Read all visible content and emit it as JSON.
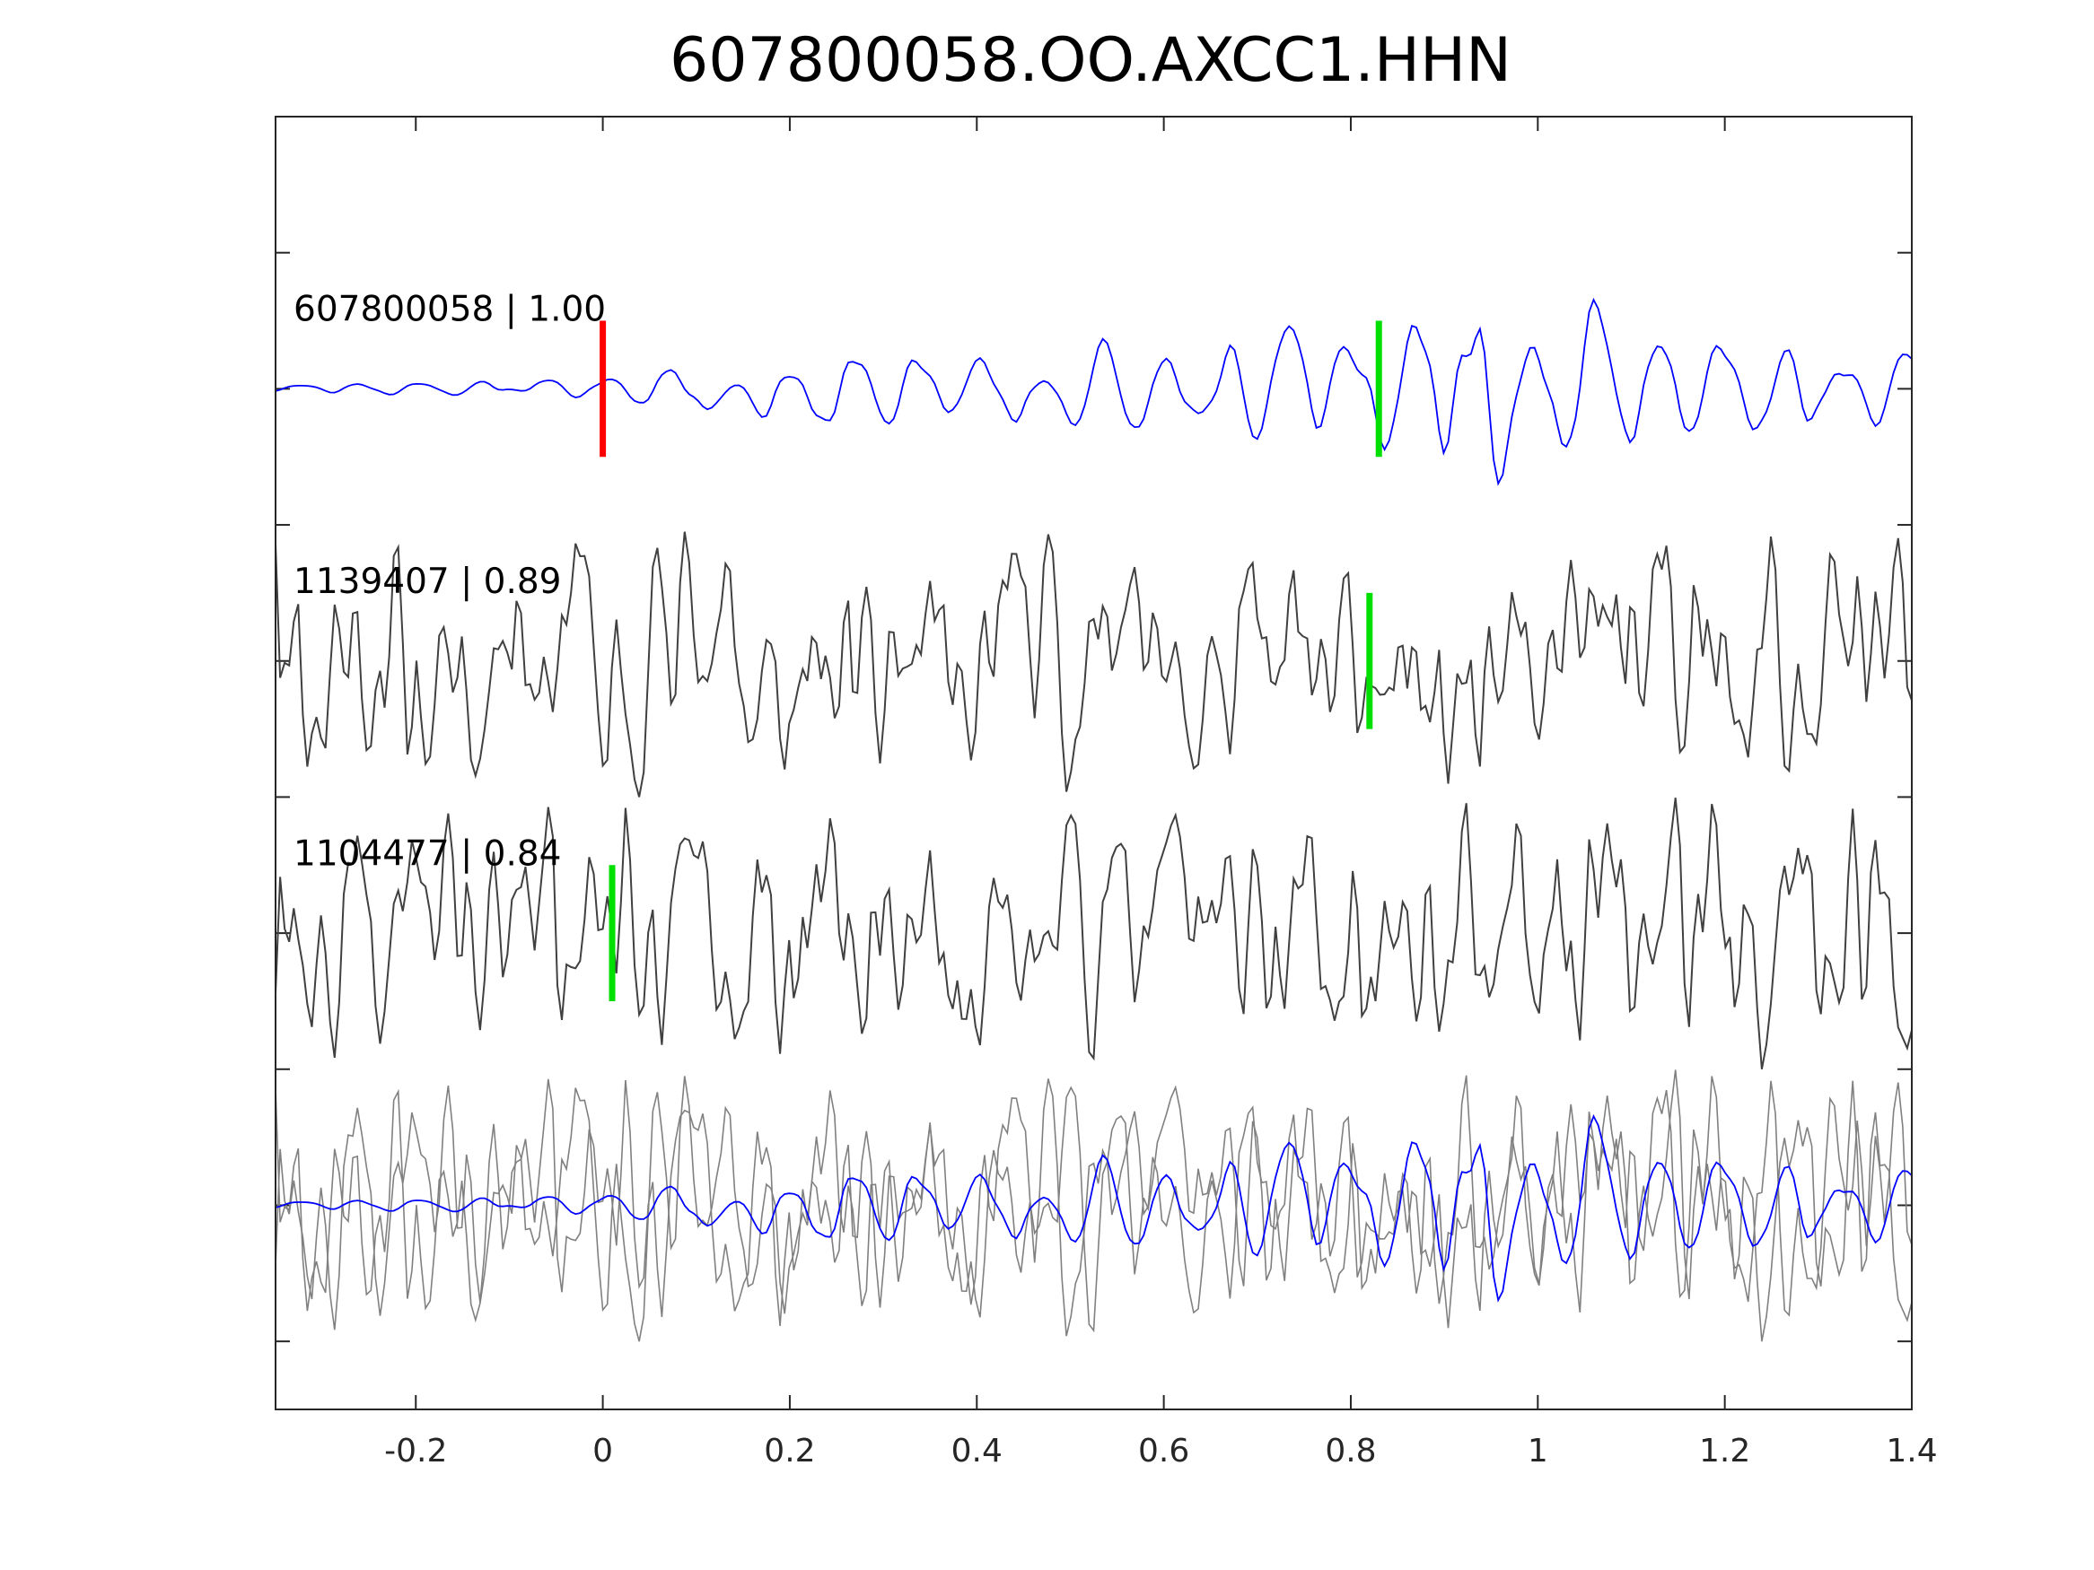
{
  "chart_data": {
    "type": "line",
    "title": "607800058.OO.AXCC1.HHN",
    "xlabel": "",
    "ylabel": "",
    "xlim": [
      -0.35,
      1.4
    ],
    "ylim": [
      0,
      4.75
    ],
    "x_ticks": [
      -0.2,
      0,
      0.2,
      0.4,
      0.6,
      0.8,
      1,
      1.2,
      1.4
    ],
    "x_tick_labels": [
      "-0.2",
      "0",
      "0.2",
      "0.4",
      "0.6",
      "0.8",
      "1",
      "1.2",
      "1.4"
    ],
    "y_ticks": [
      0.25,
      0.75,
      1.25,
      1.75,
      2.25,
      2.75,
      3.25,
      3.75,
      4.25
    ],
    "grid": false,
    "traces": [
      {
        "label": "607800058 | 1.00",
        "color": "#0000ff",
        "baseline": 3.75,
        "amplitude": 0.5,
        "seed": 1,
        "picks": [
          {
            "t": 0.0,
            "color": "#ff0000"
          },
          {
            "t": 0.83,
            "color": "#00e000"
          }
        ],
        "envelope": [
          [
            -0.35,
            0.03
          ],
          [
            -0.05,
            0.08
          ],
          [
            0.1,
            0.18
          ],
          [
            0.3,
            0.3
          ],
          [
            0.5,
            0.36
          ],
          [
            0.7,
            0.42
          ],
          [
            0.78,
            0.55
          ],
          [
            0.85,
            0.55
          ],
          [
            0.88,
            0.85
          ],
          [
            0.92,
            1.0
          ],
          [
            1.0,
            0.55
          ],
          [
            1.1,
            0.68
          ],
          [
            1.15,
            0.5
          ],
          [
            1.4,
            0.3
          ]
        ]
      },
      {
        "label": "1139407 | 0.89",
        "color": "#404040",
        "baseline": 2.75,
        "amplitude": 0.5,
        "seed": 2,
        "picks": [
          {
            "t": 0.82,
            "color": "#00e000"
          }
        ]
      },
      {
        "label": "1104477 | 0.84",
        "color": "#404040",
        "baseline": 1.75,
        "amplitude": 0.5,
        "seed": 3,
        "picks": [
          {
            "t": 0.01,
            "color": "#00e000"
          }
        ]
      }
    ],
    "overlay": {
      "baseline": 0.75,
      "colors": [
        "#808080",
        "#808080",
        "#0000ff"
      ]
    }
  }
}
